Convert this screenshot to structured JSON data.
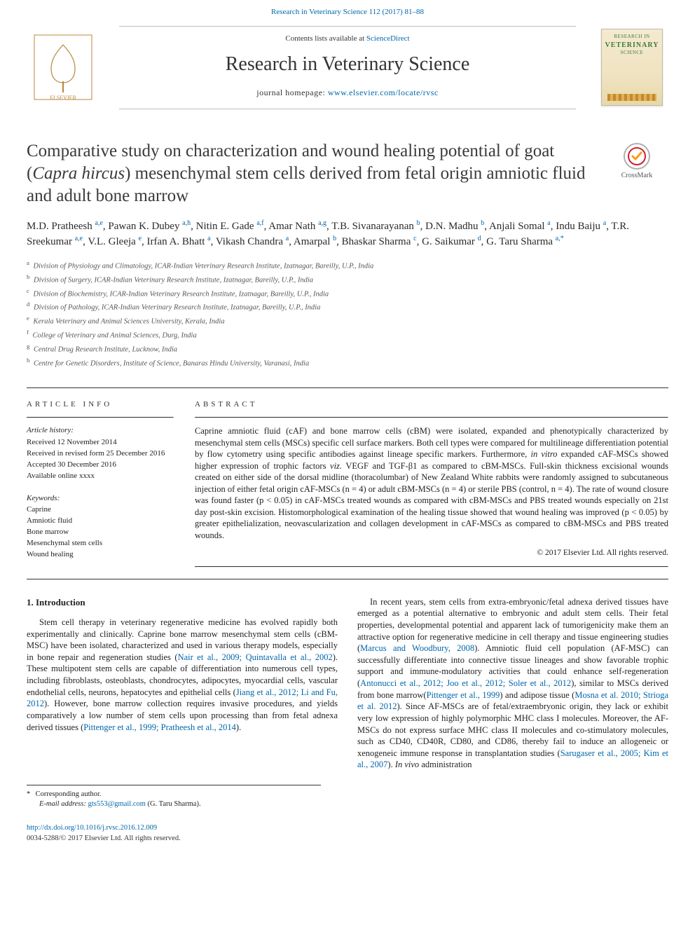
{
  "journal": {
    "top_citation": "Research in Veterinary Science 112 (2017) 81–88",
    "contents_prefix": "Contents lists available at ",
    "contents_link": "ScienceDirect",
    "name": "Research in Veterinary Science",
    "homepage_prefix": "journal homepage: ",
    "homepage_url": "www.elsevier.com/locate/rvsc",
    "cover_small": "RESEARCH IN",
    "cover_big": "VETERINARY",
    "cover_sub": "SCIENCE"
  },
  "crossmark": {
    "label": "CrossMark"
  },
  "article": {
    "title_pre": "Comparative study on characterization and wound healing potential of goat (",
    "title_species": "Capra hircus",
    "title_post": ") mesenchymal stem cells derived from fetal origin amniotic fluid and adult bone marrow",
    "authors_html": "M.D. Pratheesh <sup>a,e</sup>, Pawan K. Dubey <sup>a,h</sup>, Nitin E. Gade <sup>a,f</sup>, Amar Nath <sup>a,g</sup>, T.B. Sivanarayanan <sup>b</sup>, D.N. Madhu <sup>b</sup>, Anjali Somal <sup>a</sup>, Indu Baiju <sup>a</sup>, T.R. Sreekumar <sup>a,e</sup>, V.L. Gleeja <sup>e</sup>, Irfan A. Bhatt <sup>a</sup>, Vikash Chandra <sup>a</sup>, Amarpal <sup>b</sup>, Bhaskar Sharma <sup>c</sup>, G. Saikumar <sup>d</sup>, G. Taru Sharma <sup>a,*</sup>",
    "affiliations": [
      {
        "k": "a",
        "t": "Division of Physiology and Climatology, ICAR-Indian Veterinary Research Institute, Izatnagar, Bareilly, U.P., India"
      },
      {
        "k": "b",
        "t": "Division of Surgery, ICAR-Indian Veterinary Research Institute, Izatnagar, Bareilly, U.P., India"
      },
      {
        "k": "c",
        "t": "Division of Biochemistry, ICAR-Indian Veterinary Research Institute, Izatnagar, Bareilly, U.P., India"
      },
      {
        "k": "d",
        "t": "Division of Pathology, ICAR-Indian Veterinary Research Institute, Izatnagar, Bareilly, U.P., India"
      },
      {
        "k": "e",
        "t": "Kerala Veterinary and Animal Sciences University, Kerala, India"
      },
      {
        "k": "f",
        "t": "College of Veterinary and Animal Sciences, Durg, India"
      },
      {
        "k": "g",
        "t": "Central Drug Research Institute, Lucknow, India"
      },
      {
        "k": "h",
        "t": "Centre for Genetic Disorders, Institute of Science, Banaras Hindu University, Varanasi, India"
      }
    ]
  },
  "info": {
    "heading": "article info",
    "history_label": "Article history:",
    "history": [
      "Received 12 November 2014",
      "Received in revised form 25 December 2016",
      "Accepted 30 December 2016",
      "Available online xxxx"
    ],
    "keywords_label": "Keywords:",
    "keywords": [
      "Caprine",
      "Amniotic fluid",
      "Bone marrow",
      "Mesenchymal stem cells",
      "Wound healing"
    ]
  },
  "abstract": {
    "heading": "abstract",
    "text": "Caprine amniotic fluid (cAF) and bone marrow cells (cBM) were isolated, expanded and phenotypically characterized by mesenchymal stem cells (MSCs) specific cell surface markers. Both cell types were compared for multilineage differentiation potential by flow cytometry using specific antibodies against lineage specific markers. Furthermore, <span class=\"ital\">in vitro</span> expanded cAF-MSCs showed higher expression of trophic factors <span class=\"ital\">viz.</span> VEGF and TGF-β1 as compared to cBM-MSCs. Full-skin thickness excisional wounds created on either side of the dorsal midline (thoracolumbar) of New Zealand White rabbits were randomly assigned to subcutaneous injection of either fetal origin cAF-MSCs (n = 4) or adult cBM-MSCs (n = 4) or sterile PBS (control, n = 4). The rate of wound closure was found faster (p < 0.05) in cAF-MSCs treated wounds as compared with cBM-MSCs and PBS treated wounds especially on 21st day post-skin excision. Histomorphological examination of the healing tissue showed that wound healing was improved (p < 0.05) by greater epithelialization, neovascularization and collagen development in cAF-MSCs as compared to cBM-MSCs and PBS treated wounds.",
    "copyright": "© 2017 Elsevier Ltd. All rights reserved."
  },
  "body": {
    "section_heading": "1. Introduction",
    "left_para": "Stem cell therapy in veterinary regenerative medicine has evolved rapidly both experimentally and clinically. Caprine bone marrow mesenchymal stem cells (cBM-MSC) have been isolated, characterized and used in various therapy models, especially in bone repair and regeneration studies (<span class=\"cite\">Nair et al., 2009; Quintavalla et al., 2002</span>). These multipotent stem cells are capable of differentiation into numerous cell types, including fibroblasts, osteoblasts, chondrocytes, adipocytes, myocardial cells, vascular endothelial cells, neurons, hepatocytes and epithelial cells (<span class=\"cite\">Jiang et al., 2012; Li and Fu, 2012</span>). However, bone marrow collection requires invasive procedures, and yields comparatively a low number of stem cells upon processing than from fetal adnexa derived tissues (<span class=\"cite\">Pittenger et al., 1999; Pratheesh et al., 2014</span>).",
    "right_para": "In recent years, stem cells from extra-embryonic/fetal adnexa derived tissues have emerged as a potential alternative to embryonic and adult stem cells. Their fetal properties, developmental potential and apparent lack of tumorigenicity make them an attractive option for regenerative medicine in cell therapy and tissue engineering studies (<span class=\"cite\">Marcus and Woodbury, 2008</span>). Amniotic fluid cell population (AF-MSC) can successfully differentiate into connective tissue lineages and show favorable trophic support and immune-modulatory activities that could enhance self-regeneration (<span class=\"cite\">Antonucci et al., 2012; Joo et al., 2012; Soler et al., 2012</span>), similar to MSCs derived from bone marrow(<span class=\"cite\">Pittenger et al., 1999</span>) and adipose tissue (<span class=\"cite\">Mosna et al. 2010; Strioga et al. 2012</span>). Since AF-MSCs are of fetal/extraembryonic origin, they lack or exhibit very low expression of highly polymorphic MHC class I molecules. Moreover, the AF-MSCs do not express surface MHC class II molecules and co-stimulatory molecules, such as CD40, CD40R, CD80, and CD86, thereby fail to induce an allogeneic or xenogeneic immune response in transplantation studies (<span class=\"cite\">Sarugaser et al., 2005; Kim et al., 2007</span>). <span class=\"ital\">In vivo</span> administration"
  },
  "corresponding": {
    "label": "Corresponding author.",
    "email_label": "E-mail address:",
    "email": "gts553@gmail.com",
    "email_who": "(G. Taru Sharma)."
  },
  "footer": {
    "doi": "http://dx.doi.org/10.1016/j.rvsc.2016.12.009",
    "issn_line": "0034-5288/© 2017 Elsevier Ltd. All rights reserved."
  },
  "style": {
    "link_color": "#0066aa",
    "text_color": "#222222",
    "rule_color": "#333333",
    "body_font_pt": 12.5,
    "title_font_pt": 25,
    "journal_name_pt": 28
  }
}
